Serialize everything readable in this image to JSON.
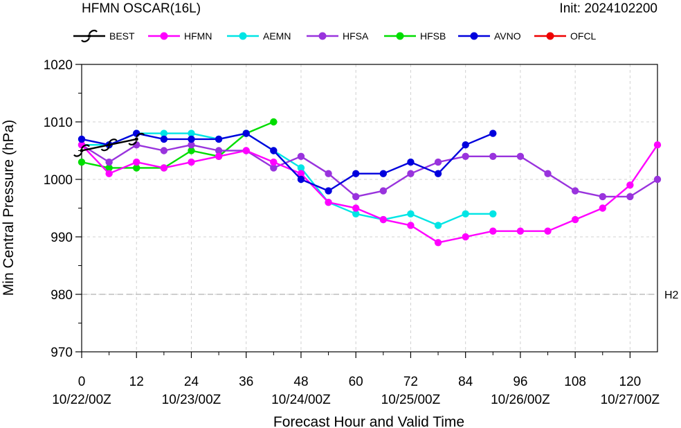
{
  "chart_data": {
    "type": "line",
    "title": "HFMN OSCAR(16L)",
    "init_label": "Init: 2024102200",
    "xlabel": "Forecast Hour and Valid Time",
    "ylabel": "Min Central Pressure (hPa)",
    "xlim": [
      0,
      126
    ],
    "ylim": [
      970,
      1020
    ],
    "x_ticks": [
      0,
      12,
      24,
      36,
      48,
      60,
      72,
      84,
      96,
      108,
      120
    ],
    "x_date_ticks": [
      {
        "x": 0,
        "label": "10/22/00Z"
      },
      {
        "x": 24,
        "label": "10/23/00Z"
      },
      {
        "x": 48,
        "label": "10/24/00Z"
      },
      {
        "x": 72,
        "label": "10/25/00Z"
      },
      {
        "x": 96,
        "label": "10/26/00Z"
      },
      {
        "x": 120,
        "label": "10/27/00Z"
      }
    ],
    "y_ticks": [
      970,
      980,
      990,
      1000,
      1010,
      1020
    ],
    "grid": true,
    "reference_lines": [
      {
        "y": 980,
        "label": "H2"
      }
    ],
    "legend_position": "top",
    "series": [
      {
        "name": "BEST",
        "color": "#000000",
        "marker": "hurricane",
        "x": [
          0,
          6,
          12
        ],
        "y": [
          1005,
          1006,
          1007
        ]
      },
      {
        "name": "HFMN",
        "color": "#ff00ff",
        "marker": "circle",
        "x": [
          0,
          6,
          12,
          18,
          24,
          30,
          36,
          42,
          48,
          54,
          60,
          66,
          72,
          78,
          84,
          90,
          96,
          102,
          108,
          114,
          120,
          126
        ],
        "y": [
          1006,
          1001,
          1003,
          1002,
          1003,
          1004,
          1005,
          1003,
          1001,
          996,
          995,
          993,
          992,
          989,
          990,
          991,
          991,
          991,
          993,
          995,
          999,
          1006
        ]
      },
      {
        "name": "AEMN",
        "color": "#00e5e5",
        "marker": "circle",
        "x": [
          0,
          6,
          12,
          18,
          24,
          30,
          36,
          42,
          48,
          54,
          60,
          66,
          72,
          78,
          84,
          90
        ],
        "y": [
          1006,
          1006,
          1008,
          1008,
          1008,
          1007,
          1008,
          1005,
          1002,
          996,
          994,
          993,
          994,
          992,
          994,
          994
        ]
      },
      {
        "name": "HFSA",
        "color": "#9933dd",
        "marker": "circle",
        "x": [
          0,
          6,
          12,
          18,
          24,
          30,
          36,
          42,
          48,
          54,
          60,
          66,
          72,
          78,
          84,
          90,
          96,
          102,
          108,
          114,
          120,
          126
        ],
        "y": [
          1006,
          1003,
          1006,
          1005,
          1006,
          1005,
          1005,
          1002,
          1004,
          1001,
          997,
          998,
          1001,
          1003,
          1004,
          1004,
          1004,
          1001,
          998,
          997,
          997,
          1000
        ]
      },
      {
        "name": "HFSB",
        "color": "#00dd00",
        "marker": "circle",
        "x": [
          0,
          6,
          12,
          18,
          24,
          30,
          36,
          42
        ],
        "y": [
          1003,
          1002,
          1002,
          1002,
          1005,
          1004,
          1008,
          1010
        ]
      },
      {
        "name": "AVNO",
        "color": "#0000dd",
        "marker": "circle",
        "x": [
          0,
          6,
          12,
          18,
          24,
          30,
          36,
          42,
          48,
          54,
          60,
          66,
          72,
          78,
          84,
          90
        ],
        "y": [
          1007,
          1006,
          1008,
          1007,
          1007,
          1007,
          1008,
          1005,
          1000,
          998,
          1001,
          1001,
          1003,
          1001,
          1006,
          1008
        ]
      },
      {
        "name": "OFCL",
        "color": "#ee0000",
        "marker": "circle",
        "x": [],
        "y": []
      }
    ],
    "legend_order": [
      "BEST",
      "HFMN",
      "AEMN",
      "HFSA",
      "HFSB",
      "AVNO",
      "OFCL"
    ]
  }
}
